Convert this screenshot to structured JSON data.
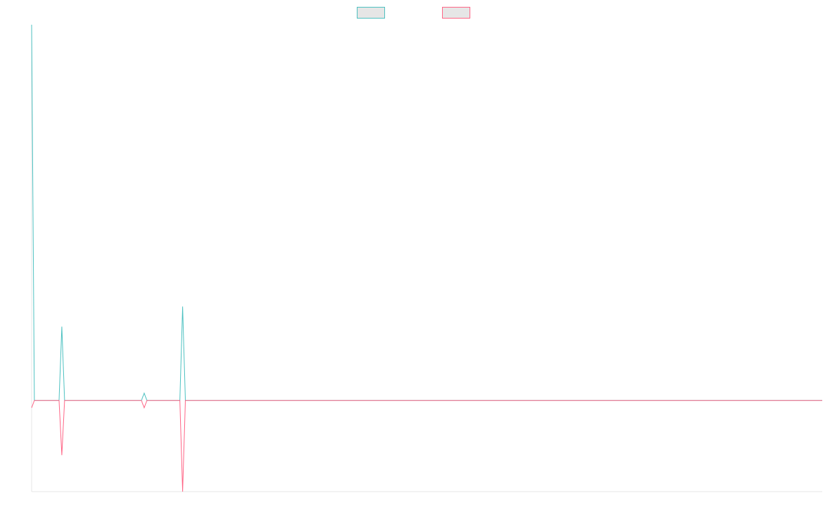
{
  "chart_data": {
    "type": "line",
    "title": "",
    "xlabel": "",
    "ylabel": "",
    "grid": false,
    "legend_position": "top-center",
    "x": [
      0,
      1,
      2,
      3,
      4,
      5,
      6,
      7,
      8,
      9,
      10,
      11,
      12,
      13,
      14,
      15,
      16,
      17,
      18,
      19,
      20,
      21,
      22,
      23,
      24,
      25,
      26,
      27,
      28,
      29,
      30,
      31,
      32,
      33,
      34,
      35,
      36,
      37,
      38,
      39,
      40,
      41,
      42,
      43,
      44,
      45,
      46,
      47,
      48,
      49,
      50,
      51,
      52,
      53,
      54,
      55,
      56,
      57,
      58,
      59,
      60,
      61,
      62,
      63,
      64,
      65,
      66,
      67,
      68,
      69,
      70,
      71,
      72,
      73,
      74,
      75,
      76,
      77,
      78,
      79,
      80,
      81,
      82,
      83,
      84,
      85,
      86,
      87,
      88,
      89,
      90,
      91,
      92,
      93,
      94,
      95,
      96,
      97,
      98,
      99,
      100,
      101,
      102,
      103,
      104,
      105,
      106,
      107,
      108,
      109,
      110,
      111,
      112,
      113,
      114,
      115,
      116,
      117,
      118,
      119,
      120,
      121,
      122,
      123,
      124,
      125,
      126,
      127,
      128,
      129,
      130,
      131,
      132,
      133,
      134,
      135,
      136,
      137,
      138,
      139,
      140,
      141,
      142,
      143,
      144,
      145,
      146,
      147,
      148,
      149,
      150,
      151,
      152,
      153,
      154,
      155,
      156,
      157,
      158,
      159,
      160,
      161,
      162,
      163,
      164,
      165,
      166,
      167,
      168,
      169,
      170,
      171,
      172,
      173,
      174,
      175,
      176,
      177,
      178,
      179,
      180,
      181,
      182,
      183,
      184,
      185,
      186,
      187,
      188,
      189,
      190,
      191,
      192,
      193,
      194,
      195,
      196,
      197,
      198,
      199,
      200,
      201,
      202,
      203,
      204,
      205,
      206,
      207,
      208,
      209,
      210,
      211,
      212,
      213,
      214,
      215,
      216,
      217,
      218,
      219,
      220,
      221,
      222,
      223,
      224,
      225,
      226,
      227,
      228,
      229,
      230,
      231,
      232,
      233,
      234,
      235,
      236,
      237,
      238,
      239,
      240,
      241,
      242,
      243,
      244,
      245,
      246,
      247,
      248,
      249,
      250,
      251,
      252,
      253,
      254,
      255,
      256,
      257,
      258,
      259,
      260,
      261,
      262,
      263,
      264,
      265,
      266,
      267,
      268,
      269,
      270,
      271,
      272,
      273,
      274,
      275,
      276,
      277,
      278,
      279,
      280,
      281,
      282,
      283,
      284,
      285,
      286,
      287,
      288
    ],
    "ylim": [
      -100,
      412
    ],
    "series": [
      {
        "name": "",
        "color": "#4bc0c0",
        "points": [
          [
            0,
            412
          ],
          [
            1,
            0
          ],
          [
            10,
            0
          ],
          [
            11,
            81
          ],
          [
            12,
            0
          ],
          [
            40,
            0
          ],
          [
            41,
            8
          ],
          [
            42,
            0
          ],
          [
            54,
            0
          ],
          [
            55,
            103
          ],
          [
            56,
            0
          ],
          [
            288,
            0
          ]
        ]
      },
      {
        "name": "",
        "color": "#ff6384",
        "points": [
          [
            0,
            -8
          ],
          [
            1,
            0
          ],
          [
            10,
            0
          ],
          [
            11,
            -60
          ],
          [
            12,
            0
          ],
          [
            40,
            0
          ],
          [
            41,
            -8
          ],
          [
            42,
            0
          ],
          [
            54,
            0
          ],
          [
            55,
            -100
          ],
          [
            56,
            0
          ],
          [
            288,
            0
          ]
        ]
      }
    ]
  }
}
